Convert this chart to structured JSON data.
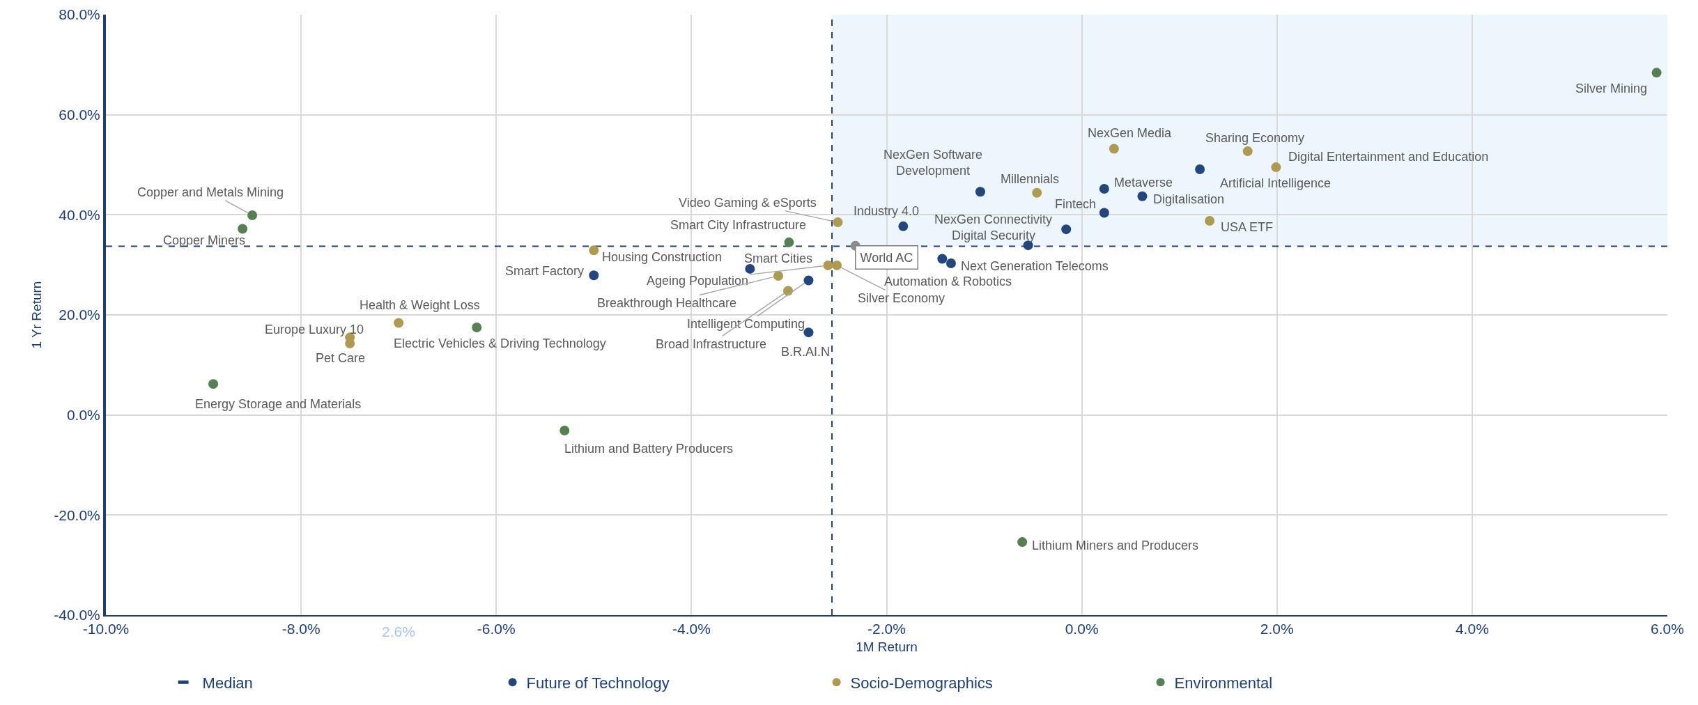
{
  "chart_data": {
    "type": "scatter",
    "xlabel": "1M Return",
    "ylabel": "1 Yr Return",
    "xlim": [
      -10,
      6
    ],
    "ylim": [
      -40,
      80
    ],
    "xticks": [
      {
        "value": -10,
        "label": "-10.0%"
      },
      {
        "value": -8,
        "label": "-8.0%"
      },
      {
        "value": -6,
        "label": "-6.0%"
      },
      {
        "value": -4,
        "label": "-4.0%"
      },
      {
        "value": -2,
        "label": "-2.0%"
      },
      {
        "value": 0,
        "label": "0.0%"
      },
      {
        "value": 2,
        "label": "2.0%"
      },
      {
        "value": 4,
        "label": "4.0%"
      },
      {
        "value": 6,
        "label": "6.0%"
      }
    ],
    "yticks": [
      {
        "value": -40,
        "label": "-40.0%"
      },
      {
        "value": -20,
        "label": "-20.0%"
      },
      {
        "value": 0,
        "label": "0.0%"
      },
      {
        "value": 20,
        "label": "20.0%"
      },
      {
        "value": 40,
        "label": "40.0%"
      },
      {
        "value": 60,
        "label": "60.0%"
      },
      {
        "value": 80,
        "label": "80.0%"
      }
    ],
    "grid": true,
    "legend": "bottom",
    "marker": "circle",
    "series": [
      {
        "name": "Future of Technology",
        "color": "#22477e",
        "x": [
          -5.0,
          -3.4,
          -2.8,
          -2.8,
          -1.83,
          -1.43,
          -1.34,
          -1.04,
          -0.55,
          -0.16,
          0.23,
          0.62,
          0.23,
          1.21
        ],
        "values": [
          27.9,
          29.2,
          26.9,
          16.5,
          37.7,
          31.2,
          30.3,
          44.6,
          33.9,
          37.1,
          45.2,
          43.7,
          40.4,
          49.1
        ],
        "value_labels": [
          "Smart Factory",
          "Smart Cities",
          "Intelligent Computing",
          "B.R.AI.N",
          "Industry 4.0",
          "Automation & Robotics",
          "Next Generation Telecoms",
          "NexGen Software\nDevelopment",
          "Digital Security",
          "NexGen Connectivity",
          "Metaverse",
          "Digitalisation",
          "Fintech",
          "Artificial Intelligence"
        ]
      },
      {
        "name": "Socio-Demographics",
        "color": "#ae9a50",
        "x": [
          -5.0,
          -7.0,
          -7.5,
          -7.5,
          -2.5,
          -2.6,
          -3.11,
          -3.01,
          -2.51,
          -0.46,
          0.33,
          1.7,
          1.99,
          1.31
        ],
        "values": [
          32.9,
          18.4,
          15.5,
          14.3,
          38.5,
          29.9,
          27.8,
          24.8,
          29.9,
          44.4,
          53.2,
          52.7,
          49.5,
          38.8
        ],
        "value_labels": [
          "Housing Construction",
          "Health & Weight Loss",
          "Europe Luxury 10",
          "Pet Care",
          "Video Gaming & eSports",
          "Ageing Population",
          "Breakthrough Healthcare",
          "Broad Infrastructure",
          "Silver Economy",
          "Millennials",
          "NexGen Media",
          "Sharing Economy",
          "Digital Entertainment and Education",
          "USA ETF"
        ]
      },
      {
        "name": "Environmental",
        "color": "#558052",
        "x": [
          -8.5,
          -8.6,
          -6.2,
          -8.9,
          -5.3,
          -3.0,
          -0.61,
          5.89
        ],
        "values": [
          39.9,
          37.2,
          17.5,
          6.2,
          -3.1,
          34.5,
          -25.4,
          68.4
        ],
        "value_labels": [
          "Copper and Metals Mining",
          "Copper Miners",
          "Electric Vehicles & Driving Technology",
          "Energy Storage and Materials",
          "Lithium and Battery Producers",
          "Smart City Infrastructure",
          "Lithium Miners and Producers",
          "Silver Mining"
        ]
      },
      {
        "color": "#8c8c8c",
        "x": [
          -2.32
        ],
        "values": [
          33.8
        ],
        "value_labels": [
          "World AC"
        ]
      }
    ],
    "ref_lines": [
      {
        "axis": "x",
        "value": -2.56,
        "label": "Median",
        "color": "#1f3f73",
        "line_style": "dashed"
      },
      {
        "axis": "y",
        "value": 33.7,
        "color": "#1f3f73",
        "line_style": "dashed"
      }
    ],
    "bands": [
      {
        "axis": "x",
        "from": -2.56,
        "to": 6,
        "color": "#eef6fd"
      }
    ],
    "annotations": [
      "2.6%"
    ]
  }
}
